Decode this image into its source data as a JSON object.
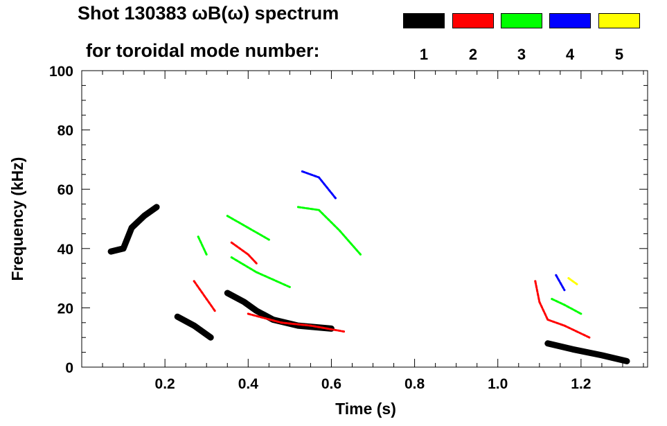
{
  "header": {
    "title": "Shot 130383 ωB(ω) spectrum",
    "subtitle": "for toroidal mode number:"
  },
  "legend": [
    {
      "label": "1",
      "color": "#000000"
    },
    {
      "label": "2",
      "color": "#ff0000"
    },
    {
      "label": "3",
      "color": "#00ff00"
    },
    {
      "label": "4",
      "color": "#0000ff"
    },
    {
      "label": "5",
      "color": "#ffff00"
    }
  ],
  "chart_data": {
    "type": "heatmap",
    "title": "Shot 130383 ωB(ω) spectrum",
    "xlabel": "Time (s)",
    "ylabel": "Frequency (kHz)",
    "xlim": [
      0.0,
      1.36
    ],
    "ylim": [
      0,
      100
    ],
    "xticks": [
      0.2,
      0.4,
      0.6,
      0.8,
      1.0,
      1.2
    ],
    "xtick_labels": [
      "0.2",
      "0.4",
      "0.6",
      "0.8",
      "1.0",
      "1.2"
    ],
    "yticks": [
      0,
      20,
      40,
      60,
      80,
      100
    ],
    "ytick_labels": [
      "0",
      "20",
      "40",
      "60",
      "80",
      "100"
    ],
    "legend_placement": "top",
    "series": [
      {
        "mode": 1,
        "color": "#000000",
        "segments": [
          [
            [
              0.07,
              39
            ],
            [
              0.1,
              40
            ],
            [
              0.12,
              47
            ],
            [
              0.15,
              51
            ],
            [
              0.18,
              54
            ]
          ],
          [
            [
              0.23,
              17
            ],
            [
              0.27,
              14
            ],
            [
              0.31,
              10
            ]
          ],
          [
            [
              0.35,
              25
            ],
            [
              0.39,
              22
            ],
            [
              0.42,
              19
            ],
            [
              0.46,
              16
            ],
            [
              0.52,
              14
            ],
            [
              0.6,
              13
            ]
          ],
          [
            [
              1.12,
              8
            ],
            [
              1.18,
              6
            ],
            [
              1.25,
              4
            ],
            [
              1.31,
              2
            ]
          ]
        ]
      },
      {
        "mode": 2,
        "color": "#ff0000",
        "segments": [
          [
            [
              0.27,
              29
            ],
            [
              0.3,
              23
            ],
            [
              0.32,
              19
            ]
          ],
          [
            [
              0.36,
              42
            ],
            [
              0.4,
              38
            ],
            [
              0.42,
              35
            ]
          ],
          [
            [
              0.4,
              18
            ],
            [
              0.48,
              15
            ],
            [
              0.55,
              14
            ],
            [
              0.63,
              12
            ]
          ],
          [
            [
              1.09,
              29
            ],
            [
              1.1,
              22
            ],
            [
              1.12,
              16
            ],
            [
              1.16,
              14
            ],
            [
              1.22,
              10
            ]
          ]
        ]
      },
      {
        "mode": 3,
        "color": "#00ff00",
        "segments": [
          [
            [
              0.28,
              44
            ],
            [
              0.3,
              38
            ]
          ],
          [
            [
              0.35,
              51
            ],
            [
              0.4,
              47
            ],
            [
              0.45,
              43
            ]
          ],
          [
            [
              0.36,
              37
            ],
            [
              0.42,
              32
            ],
            [
              0.5,
              27
            ]
          ],
          [
            [
              0.52,
              54
            ],
            [
              0.57,
              53
            ],
            [
              0.62,
              46
            ],
            [
              0.67,
              38
            ]
          ],
          [
            [
              1.13,
              23
            ],
            [
              1.16,
              21
            ],
            [
              1.2,
              18
            ]
          ]
        ]
      },
      {
        "mode": 4,
        "color": "#0000ff",
        "segments": [
          [
            [
              0.53,
              66
            ],
            [
              0.57,
              64
            ],
            [
              0.61,
              57
            ]
          ],
          [
            [
              1.14,
              31
            ],
            [
              1.16,
              26
            ]
          ]
        ]
      },
      {
        "mode": 5,
        "color": "#ffff00",
        "segments": [
          [
            [
              1.17,
              30
            ],
            [
              1.19,
              28
            ]
          ]
        ]
      }
    ]
  }
}
